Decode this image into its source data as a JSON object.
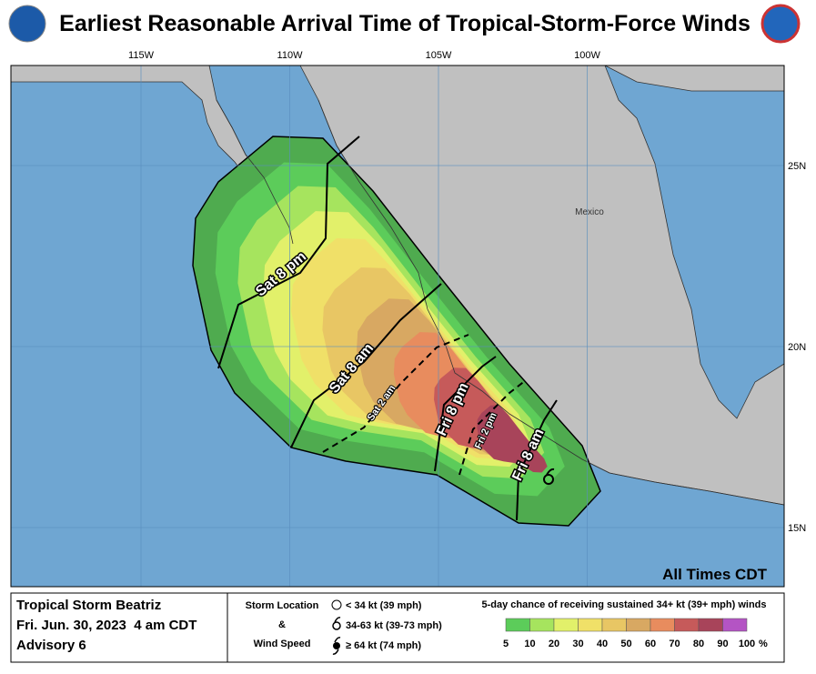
{
  "title": "Earliest Reasonable Arrival Time of Tropical-Storm-Force Winds",
  "longitudes": [
    {
      "value": -115,
      "label": "115W"
    },
    {
      "value": -110,
      "label": "110W"
    },
    {
      "value": -105,
      "label": "105W"
    },
    {
      "value": -100,
      "label": "100W"
    }
  ],
  "latitudes": [
    {
      "value": 25,
      "label": "25N"
    },
    {
      "value": 20,
      "label": "20N"
    },
    {
      "value": 15,
      "label": "15N"
    }
  ],
  "country_label": "Mexico",
  "arrival_labels": [
    "Sat 8 pm",
    "Sat 8 am",
    "Sat 2 am",
    "Fri 8 pm",
    "Fri 2 pm",
    "Fri 8 am"
  ],
  "times_note": "All Times CDT",
  "storm": {
    "name": "Tropical Storm Beatriz",
    "date": "Fri. Jun. 30, 2023  4 am CDT",
    "advisory": "Advisory 6"
  },
  "legend": {
    "heading1": "Storm Location",
    "heading2": "&",
    "heading3": "Wind Speed",
    "items": [
      "< 34 kt (39 mph)",
      "34-63 kt (39-73 mph)",
      "≥ 64 kt (74 mph)"
    ]
  },
  "colorbar": {
    "title": "5-day chance of receiving sustained 34+ kt (39+ mph) winds",
    "labels": [
      5,
      10,
      20,
      30,
      40,
      50,
      60,
      70,
      80,
      90,
      100
    ],
    "unit": "%",
    "colors": [
      "#4fab4f",
      "#5ccc5a",
      "#a6e45e",
      "#e2f06a",
      "#f0e068",
      "#e8c664",
      "#d8a862",
      "#e88c5e",
      "#c65a5a",
      "#a8445a",
      "#b454c4"
    ]
  }
}
